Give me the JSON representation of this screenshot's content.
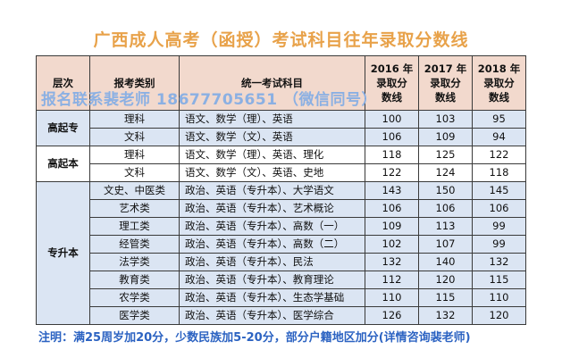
{
  "title": "广西成人高考（函授）考试科目往年录取分数线",
  "watermark": "报名联系裴老师 18677705651 （微信同号）",
  "note": "注明：满25周岁加20分，少数民族加5-20分，部分户籍地区加分(详情咨询裴老师)",
  "headers": {
    "level": "层次",
    "category": "报考类别",
    "subjects": "统一考试科目",
    "y2016": [
      "2016 年",
      "录取分",
      "数线"
    ],
    "y2017": [
      "2017 年",
      "录取分",
      "数线"
    ],
    "y2018": [
      "2018 年",
      "录取分",
      "数线"
    ]
  },
  "groups": [
    {
      "level": "高起专",
      "rows": [
        {
          "category": "理科",
          "subjects": "语文、数学（理）、英语",
          "y2016": "100",
          "y2017": "103",
          "y2018": "95"
        },
        {
          "category": "文科",
          "subjects": "语文、数学（文）、英语",
          "y2016": "106",
          "y2017": "109",
          "y2018": "94"
        }
      ]
    },
    {
      "level": "高起本",
      "rows": [
        {
          "category": "理科",
          "subjects": "语文、数学（理）、英语、理化",
          "y2016": "118",
          "y2017": "125",
          "y2018": "122"
        },
        {
          "category": "文科",
          "subjects": "语文、数学（文）、英语、史地",
          "y2016": "122",
          "y2017": "124",
          "y2018": "118"
        }
      ]
    },
    {
      "level": "专升本",
      "rows": [
        {
          "category": "文史、中医类",
          "subjects": "政治、英语（专升本）、大学语文",
          "y2016": "143",
          "y2017": "150",
          "y2018": "145"
        },
        {
          "category": "艺术类",
          "subjects": "政治、英语（专升本）、艺术概论",
          "y2016": "106",
          "y2017": "106",
          "y2018": "106"
        },
        {
          "category": "理工类",
          "subjects": "政治、英语（专升本）、高数（一）",
          "y2016": "109",
          "y2017": "113",
          "y2018": "99"
        },
        {
          "category": "经管类",
          "subjects": "政治、英语（专升本）、高数（二）",
          "y2016": "102",
          "y2017": "107",
          "y2018": "99"
        },
        {
          "category": "法学类",
          "subjects": "政治、英语（专升本）、民法",
          "y2016": "132",
          "y2017": "140",
          "y2018": "132"
        },
        {
          "category": "教育类",
          "subjects": "政治、英语（专升本）、教育理论",
          "y2016": "112",
          "y2017": "120",
          "y2018": "115"
        },
        {
          "category": "农学类",
          "subjects": "政治、英语（专升本）、生态学基础",
          "y2016": "110",
          "y2017": "115",
          "y2018": "110"
        },
        {
          "category": "医学类",
          "subjects": "政治、英语（专升本）、医学综合",
          "y2016": "126",
          "y2017": "132",
          "y2018": "120"
        }
      ]
    }
  ]
}
